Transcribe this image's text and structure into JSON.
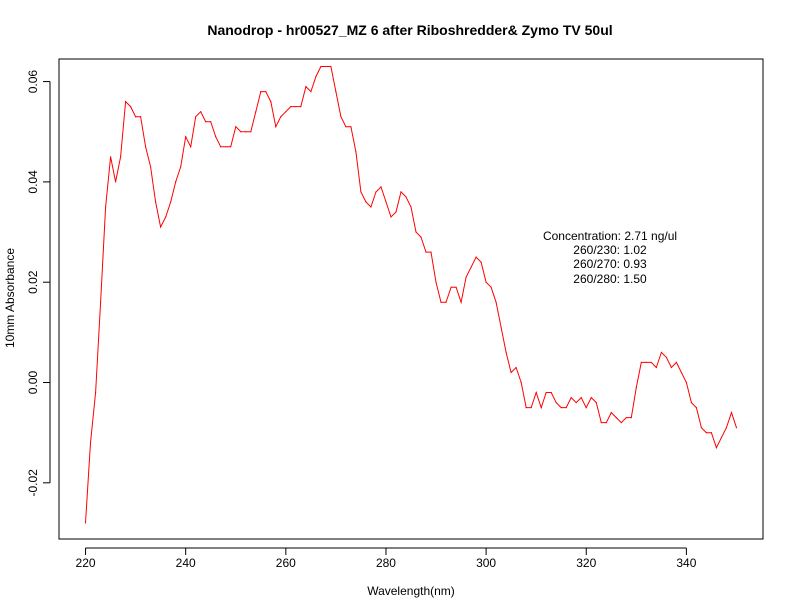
{
  "chart_data": {
    "type": "line",
    "title": "Nanodrop - hr00527_MZ 6 after Riboshredder& Zymo  TV 50ul",
    "xlabel": "Wavelength(nm)",
    "ylabel": "10mm Absorbance",
    "xlim": [
      214.7,
      355.3
    ],
    "ylim": [
      -0.0312,
      0.0645
    ],
    "x_ticks": [
      220,
      240,
      260,
      280,
      300,
      320,
      340
    ],
    "y_ticks": [
      -0.02,
      0.0,
      0.02,
      0.04,
      0.06
    ],
    "x_tick_labels": [
      "220",
      "240",
      "260",
      "280",
      "300",
      "320",
      "340"
    ],
    "y_tick_labels": [
      "-0.02",
      "0.00",
      "0.02",
      "0.04",
      "0.06"
    ],
    "line_color": "#ff0000",
    "grid": false,
    "series": [
      {
        "x": [
          220,
          221,
          222,
          223,
          224,
          225,
          226,
          227,
          228,
          229,
          230,
          231,
          232,
          233,
          234,
          235,
          236,
          237,
          238,
          239,
          240,
          241,
          242,
          243,
          244,
          245,
          246,
          247,
          248,
          249,
          250,
          251,
          252,
          253,
          254,
          255,
          256,
          257,
          258,
          259,
          260,
          261,
          262,
          263,
          264,
          265,
          266,
          267,
          268,
          269,
          270,
          271,
          272,
          273,
          274,
          275,
          276,
          277,
          278,
          279,
          280,
          281,
          282,
          283,
          284,
          285,
          286,
          287,
          288,
          289,
          290,
          291,
          292,
          293,
          294,
          295,
          296,
          297,
          298,
          299,
          300,
          301,
          302,
          303,
          304,
          305,
          306,
          307,
          308,
          309,
          310,
          311,
          312,
          313,
          314,
          315,
          316,
          317,
          318,
          319,
          320,
          321,
          322,
          323,
          324,
          325,
          326,
          327,
          328,
          329,
          330,
          331,
          332,
          333,
          334,
          335,
          336,
          337,
          338,
          339,
          340,
          341,
          342,
          343,
          344,
          345,
          346,
          347,
          348,
          349,
          350
        ],
        "y": [
          -0.028,
          -0.012,
          -0.002,
          0.016,
          0.035,
          0.045,
          0.04,
          0.045,
          0.056,
          0.055,
          0.053,
          0.053,
          0.047,
          0.043,
          0.036,
          0.031,
          0.033,
          0.036,
          0.04,
          0.043,
          0.049,
          0.047,
          0.053,
          0.054,
          0.052,
          0.052,
          0.049,
          0.047,
          0.047,
          0.047,
          0.051,
          0.05,
          0.05,
          0.05,
          0.054,
          0.058,
          0.058,
          0.056,
          0.051,
          0.053,
          0.054,
          0.055,
          0.055,
          0.055,
          0.059,
          0.058,
          0.061,
          0.063,
          0.063,
          0.063,
          0.058,
          0.053,
          0.051,
          0.051,
          0.046,
          0.038,
          0.036,
          0.035,
          0.038,
          0.039,
          0.036,
          0.033,
          0.034,
          0.038,
          0.037,
          0.035,
          0.03,
          0.029,
          0.026,
          0.026,
          0.02,
          0.016,
          0.016,
          0.019,
          0.019,
          0.016,
          0.021,
          0.023,
          0.025,
          0.024,
          0.02,
          0.019,
          0.016,
          0.011,
          0.006,
          0.002,
          0.003,
          0.0,
          -0.005,
          -0.005,
          -0.002,
          -0.005,
          -0.002,
          -0.002,
          -0.004,
          -0.005,
          -0.005,
          -0.003,
          -0.004,
          -0.003,
          -0.005,
          -0.003,
          -0.004,
          -0.008,
          -0.008,
          -0.006,
          -0.007,
          -0.008,
          -0.007,
          -0.007,
          -0.001,
          0.004,
          0.004,
          0.004,
          0.003,
          0.006,
          0.005,
          0.003,
          0.004,
          0.002,
          0.0,
          -0.004,
          -0.005,
          -0.009,
          -0.01,
          -0.01,
          -0.013,
          -0.011,
          -0.009,
          -0.006,
          -0.009
        ]
      }
    ],
    "annotations": [
      "Concentration: 2.71 ng/ul",
      "260/230: 1.02",
      "260/270: 0.93",
      "260/280: 1.50"
    ]
  }
}
